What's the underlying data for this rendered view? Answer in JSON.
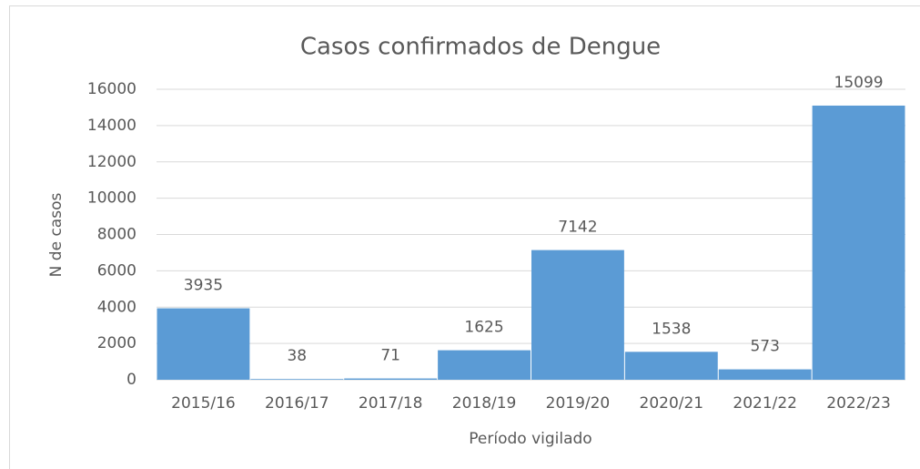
{
  "chart_data": {
    "type": "bar",
    "title": "Casos confirmados de Dengue",
    "x_label": "Período vigilado",
    "y_label": "N de casos",
    "categories": [
      "2015/16",
      "2016/17",
      "2017/18",
      "2018/19",
      "2019/20",
      "2020/21",
      "2021/22",
      "2022/23"
    ],
    "values": [
      3935,
      38,
      71,
      1625,
      7142,
      1538,
      573,
      15099
    ],
    "color": "#5b9bd5",
    "ylim": [
      0,
      16000
    ],
    "yticks": [
      0,
      2000,
      4000,
      6000,
      8000,
      10000,
      12000,
      14000,
      16000
    ],
    "grid": true
  }
}
